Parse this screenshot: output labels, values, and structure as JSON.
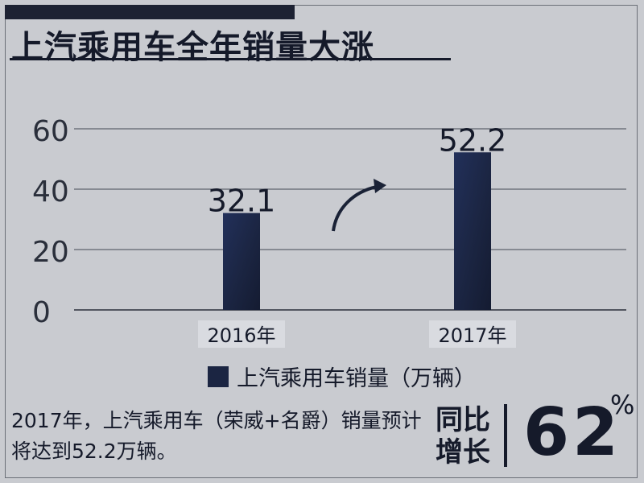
{
  "header": {
    "title": "上汽乘用车全年销量大涨"
  },
  "chart_data": {
    "type": "bar",
    "categories": [
      "2016年",
      "2017年"
    ],
    "values": [
      32.1,
      52.2
    ],
    "data_labels": [
      "32.1",
      "52.2"
    ],
    "series": [
      {
        "name": "上汽乘用车销量（万辆）",
        "values": [
          32.1,
          52.2
        ]
      }
    ],
    "ylim": [
      0,
      60
    ],
    "yticks": [
      0,
      20,
      40,
      60
    ],
    "grid": true,
    "legend": "bottom",
    "bar_color": "#1b2542"
  },
  "legend": {
    "label": "上汽乘用车销量（万辆）"
  },
  "footer": {
    "description": "2017年，上汽乘用车（荣威+名爵）销量预计将达到52.2万辆。",
    "growth_label_line1": "同比",
    "growth_label_line2": "增长",
    "growth_value": "62",
    "growth_unit": "%"
  }
}
